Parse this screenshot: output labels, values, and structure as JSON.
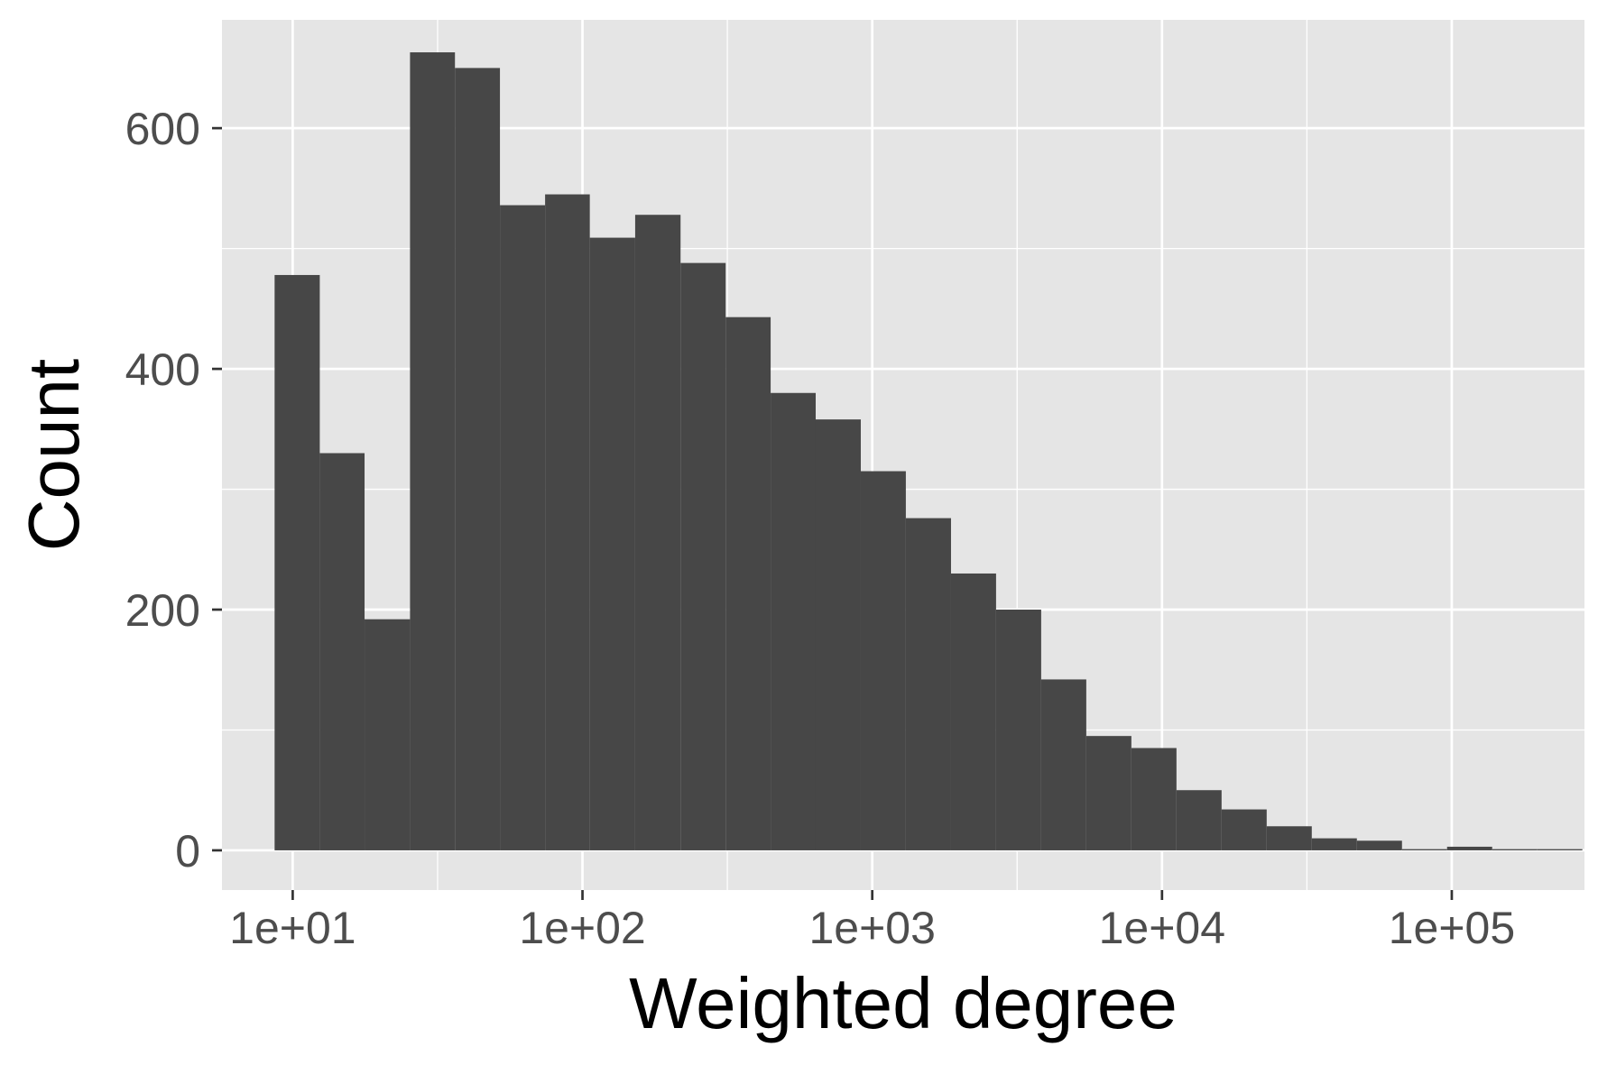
{
  "chart_data": {
    "type": "bar",
    "subtype": "histogram",
    "x_scale": "log10",
    "xlabel": "Weighted degree",
    "ylabel": "Count",
    "xlim": [
      5.7,
      287000
    ],
    "ylim": [
      -33,
      690
    ],
    "x_ticks": [
      10,
      100,
      1000,
      10000,
      100000
    ],
    "x_tick_labels": [
      "1e+01",
      "1e+02",
      "1e+03",
      "1e+04",
      "1e+05"
    ],
    "y_ticks": [
      0,
      200,
      400,
      600
    ],
    "y_tick_labels": [
      "0",
      "200",
      "400",
      "600"
    ],
    "bins": [
      {
        "x0": 8.66,
        "x1": 12.4,
        "count": 478
      },
      {
        "x0": 12.4,
        "x1": 17.7,
        "count": 330
      },
      {
        "x0": 17.7,
        "x1": 25.4,
        "count": 192
      },
      {
        "x0": 25.4,
        "x1": 36.3,
        "count": 663
      },
      {
        "x0": 36.3,
        "x1": 51.9,
        "count": 650
      },
      {
        "x0": 51.9,
        "x1": 74.3,
        "count": 536
      },
      {
        "x0": 74.3,
        "x1": 106,
        "count": 545
      },
      {
        "x0": 106,
        "x1": 152,
        "count": 509
      },
      {
        "x0": 152,
        "x1": 218,
        "count": 528
      },
      {
        "x0": 218,
        "x1": 312,
        "count": 488
      },
      {
        "x0": 312,
        "x1": 446,
        "count": 443
      },
      {
        "x0": 446,
        "x1": 638,
        "count": 380
      },
      {
        "x0": 638,
        "x1": 913,
        "count": 358
      },
      {
        "x0": 913,
        "x1": 1306,
        "count": 315
      },
      {
        "x0": 1306,
        "x1": 1870,
        "count": 276
      },
      {
        "x0": 1870,
        "x1": 2675,
        "count": 230
      },
      {
        "x0": 2675,
        "x1": 3828,
        "count": 200
      },
      {
        "x0": 3828,
        "x1": 5478,
        "count": 142
      },
      {
        "x0": 5478,
        "x1": 7839,
        "count": 95
      },
      {
        "x0": 7839,
        "x1": 11218,
        "count": 85
      },
      {
        "x0": 11218,
        "x1": 16053,
        "count": 50
      },
      {
        "x0": 16053,
        "x1": 22972,
        "count": 34
      },
      {
        "x0": 22972,
        "x1": 32873,
        "count": 20
      },
      {
        "x0": 32873,
        "x1": 47041,
        "count": 10
      },
      {
        "x0": 47041,
        "x1": 67316,
        "count": 8
      },
      {
        "x0": 67316,
        "x1": 96329,
        "count": 1
      },
      {
        "x0": 96329,
        "x1": 137847,
        "count": 3
      },
      {
        "x0": 137847,
        "x1": 197259,
        "count": 1
      },
      {
        "x0": 197259,
        "x1": 282276,
        "count": 1
      }
    ],
    "grid": true,
    "legend": "none",
    "colors": {
      "panel_background": "#e5e5e5",
      "grid_line": "#ffffff",
      "bar_fill": "#474747",
      "tick_text": "#4d4d4d",
      "axis_title": "#000000"
    }
  }
}
